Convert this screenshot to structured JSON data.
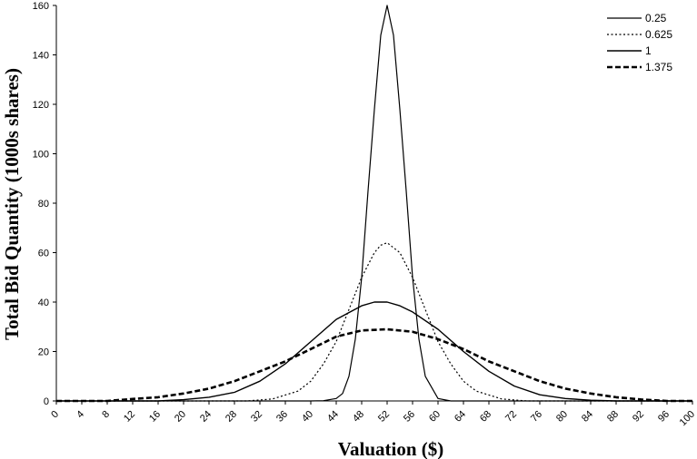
{
  "chart_data": {
    "type": "line",
    "title": "",
    "xlabel": "Valuation ($)",
    "ylabel": "Total Bid Quantity (1000s shares)",
    "xlim": [
      0,
      100
    ],
    "ylim": [
      0,
      160
    ],
    "x_ticks": [
      "0",
      "4",
      "8",
      "12",
      "16",
      "20",
      "24",
      "28",
      "32",
      "36",
      "40",
      "44",
      "48",
      "52",
      "56",
      "60",
      "64",
      "68",
      "72",
      "76",
      "80",
      "84",
      "88",
      "92",
      "96",
      "100"
    ],
    "y_ticks": [
      "0",
      "20",
      "40",
      "60",
      "80",
      "100",
      "120",
      "140",
      "160"
    ],
    "grid": false,
    "legend_position": "top-right",
    "series": [
      {
        "name": "0.25",
        "style": "solid-thin",
        "x": [
          40,
          42,
          44,
          45,
          46,
          47,
          48,
          49,
          50,
          51,
          52,
          53,
          54,
          55,
          56,
          57,
          58,
          60,
          62
        ],
        "y": [
          0,
          0.1,
          1,
          3,
          10,
          25,
          50,
          85,
          118,
          148,
          160,
          148,
          118,
          85,
          50,
          25,
          10,
          1,
          0
        ]
      },
      {
        "name": "0.625",
        "style": "dotted-thin",
        "x": [
          30,
          34,
          38,
          40,
          42,
          44,
          46,
          48,
          50,
          51,
          52,
          54,
          56,
          58,
          60,
          62,
          64,
          66,
          70,
          74
        ],
        "y": [
          0,
          0.8,
          4,
          8,
          15,
          24,
          37,
          50,
          60,
          63,
          64,
          60,
          50,
          37,
          24,
          15,
          8,
          4,
          0.8,
          0
        ]
      },
      {
        "name": "1",
        "style": "solid-medium",
        "x": [
          16,
          20,
          24,
          28,
          32,
          36,
          40,
          44,
          48,
          50,
          52,
          54,
          56,
          60,
          64,
          68,
          72,
          76,
          80,
          84,
          88
        ],
        "y": [
          0,
          0.5,
          1.5,
          3.5,
          8,
          15,
          24,
          33,
          38.5,
          40,
          40,
          38.5,
          36,
          29,
          20,
          12,
          6,
          2.5,
          1,
          0.3,
          0
        ]
      },
      {
        "name": "1.375",
        "style": "dashed-thick",
        "x": [
          8,
          12,
          16,
          20,
          24,
          28,
          32,
          36,
          40,
          44,
          48,
          52,
          56,
          60,
          64,
          68,
          72,
          76,
          80,
          84,
          88,
          92,
          96
        ],
        "y": [
          0,
          0.8,
          1.5,
          3,
          5,
          8,
          12,
          16,
          21,
          26,
          28.5,
          29,
          28,
          25,
          21,
          16,
          12,
          8,
          5,
          3,
          1.5,
          0.6,
          0
        ]
      }
    ]
  }
}
